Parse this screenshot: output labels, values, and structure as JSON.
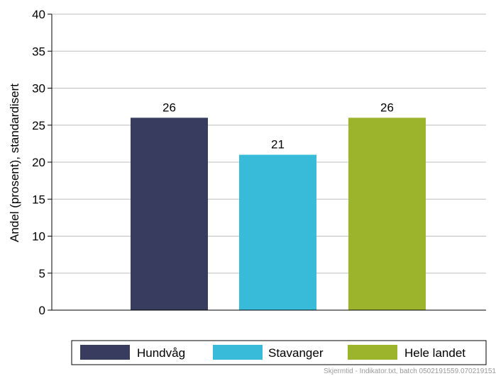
{
  "chart_data": {
    "type": "bar",
    "categories": [
      "Hundvåg",
      "Stavanger",
      "Hele landet"
    ],
    "values": [
      26,
      21,
      26
    ],
    "data_labels": [
      "26",
      "21",
      "26"
    ],
    "colors": [
      "#383C5E",
      "#38BBD8",
      "#9BB42B"
    ],
    "ylabel": "Andel (prosent), standardisert",
    "xlabel": "",
    "ylim": [
      0,
      40
    ],
    "yticks": [
      0,
      5,
      10,
      15,
      20,
      25,
      30,
      35,
      40
    ],
    "ytick_labels": [
      "0",
      "5",
      "10",
      "15",
      "20",
      "25",
      "30",
      "35",
      "40"
    ],
    "grid": "horizontal",
    "legend": {
      "placement": "bottom",
      "entries": [
        "Hundvåg",
        "Stavanger",
        "Hele landet"
      ]
    }
  },
  "footer_text": "Skjermtid - Indikator.txt, batch 0502191559.070219151"
}
